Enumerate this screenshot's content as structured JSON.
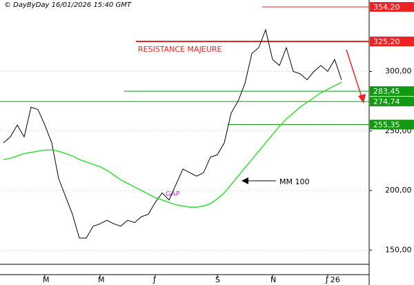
{
  "chart_data": {
    "type": "line",
    "title": "© DayByDay 16/01/2026  15:40 GMT",
    "categories": [
      null,
      null,
      null,
      null,
      null,
      null,
      "M",
      null,
      null,
      null,
      null,
      null,
      null,
      null,
      "M",
      null,
      null,
      null,
      null,
      null,
      null,
      null,
      "J",
      null,
      null,
      null,
      null,
      null,
      null,
      null,
      null,
      "S",
      null,
      null,
      null,
      null,
      null,
      null,
      null,
      "N",
      null,
      null,
      null,
      null,
      null,
      null,
      null,
      "J 26",
      null,
      null
    ],
    "series": [
      {
        "color": "#000000",
        "values": [
          240,
          245,
          255,
          245,
          270,
          268,
          255,
          240,
          210,
          195,
          180,
          160,
          160,
          170,
          172,
          175,
          172,
          170,
          175,
          173,
          178,
          180,
          190,
          198,
          192,
          205,
          218,
          215,
          212,
          215,
          228,
          230,
          240,
          265,
          275,
          290,
          315,
          320,
          335,
          310,
          305,
          320,
          300,
          298,
          293,
          300,
          305,
          300,
          310,
          293
        ]
      },
      {
        "name": "MM 100",
        "color": "#33dd33",
        "values": [
          226,
          227,
          229,
          231,
          232,
          233,
          234,
          234,
          233,
          231,
          229,
          226,
          224,
          222,
          220,
          217,
          213,
          209,
          206,
          203,
          200,
          197,
          194,
          192,
          190,
          188,
          187,
          186,
          186,
          187,
          189,
          193,
          198,
          205,
          212,
          219,
          226,
          233,
          240,
          247,
          254,
          260,
          265,
          270,
          274,
          278,
          282,
          285,
          288,
          291
        ]
      }
    ],
    "levels": [
      {
        "value": 354.2,
        "label": "354,20",
        "color": "#ee2222"
      },
      {
        "value": 325.2,
        "label": "325,20",
        "color": "#ee2222"
      },
      {
        "value": 283.45,
        "label": "283,45",
        "color": "#119911"
      },
      {
        "value": 274.74,
        "label": "274,74",
        "color": "#119911"
      },
      {
        "value": 255.35,
        "label": "255,35",
        "color": "#119911"
      }
    ],
    "annotations": [
      "RESISTANCE MAJEURE",
      "GAP"
    ],
    "ylim": [
      138,
      360
    ],
    "yticks": [
      {
        "value": 150,
        "label": "150,00"
      },
      {
        "value": 200,
        "label": "200,00"
      },
      {
        "value": 250,
        "label": "250,00"
      },
      {
        "value": 300,
        "label": "300,00"
      }
    ],
    "grid": true
  }
}
